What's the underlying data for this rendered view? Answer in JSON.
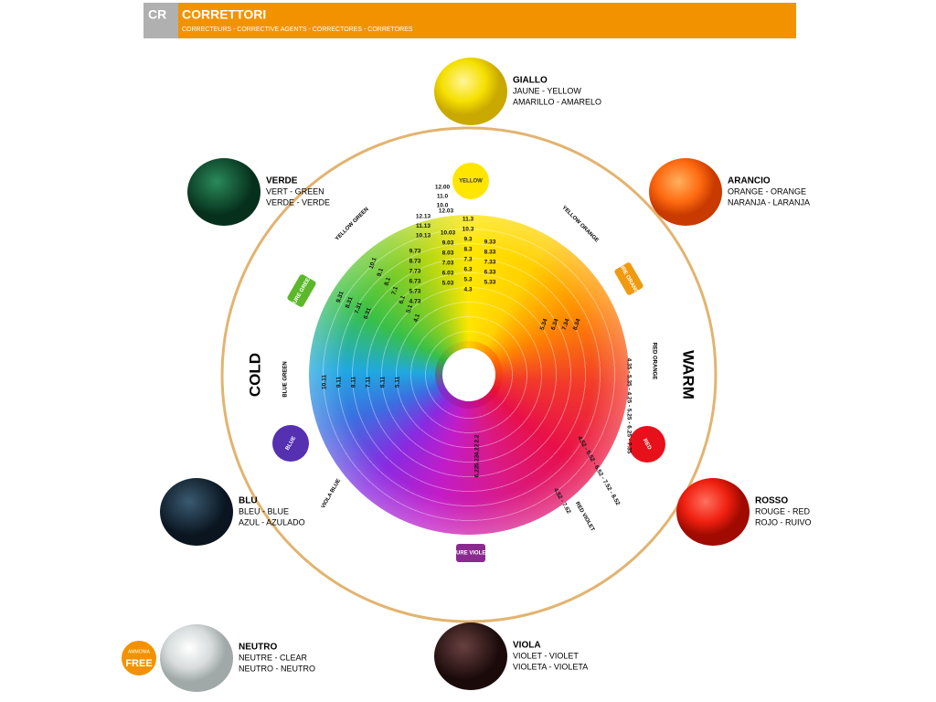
{
  "header": {
    "code": "CR",
    "title": "CORRETTORI",
    "subtitle": "CORRECTEURS - CORRECTIVE AGENTS - CORRECTORES - CORRETORES"
  },
  "swatches": [
    {
      "name": "GIALLO",
      "line1": "JAUNE - YELLOW",
      "line2": "AMARILLO - AMARELO"
    },
    {
      "name": "VERDE",
      "line1": "VERT - GREEN",
      "line2": "VERDE - VERDE"
    },
    {
      "name": "ARANCIO",
      "line1": "ORANGE - ORANGE",
      "line2": "NARANJA - LARANJA"
    },
    {
      "name": "BLU",
      "line1": "BLEU - BLUE",
      "line2": "AZUL - AZULADO"
    },
    {
      "name": "ROSSO",
      "line1": "ROUGE - RED",
      "line2": "ROJO - RUIVO"
    },
    {
      "name": "NEUTRO",
      "line1": "NEUTRE - CLEAR",
      "line2": "NEUTRO - NEUTRO"
    },
    {
      "name": "VIOLA",
      "line1": "VIOLET - VIOLET",
      "line2": "VIOLETA - VIOLETA"
    }
  ],
  "free_badge": {
    "top": "AMMONIA",
    "label": "FREE"
  },
  "wheel": {
    "cold": "COLD",
    "warm": "WARM",
    "badges": [
      "YELLOW",
      "PURE GREEN",
      "PURE ORANGE",
      "BLUE",
      "RED",
      "PURE VIOLET"
    ],
    "sectors": [
      "YELLOW GREEN",
      "YELLOW ORANGE",
      "BLUE GREEN",
      "RED ORANGE",
      "VIOLA BLUE",
      "RED VIOLET"
    ],
    "columns": [
      [
        "12.00",
        "11.0",
        "10.0"
      ],
      [
        "12.03"
      ],
      [
        "12.13",
        "11.13",
        "10.13"
      ],
      [
        "10.03",
        "9.03",
        "8.03",
        "7.03",
        "6.03",
        "5.03"
      ],
      [
        "11.3",
        "10.3",
        "9.3",
        "8.3",
        "7.3",
        "6.3",
        "5.3",
        "4.3"
      ],
      [
        "9.33",
        "8.33",
        "7.33",
        "6.33",
        "5.33"
      ],
      [
        "9.73",
        "8.73",
        "7.73",
        "6.73",
        "5.73",
        "4.73"
      ],
      [
        "10.1",
        "9.1",
        "8.1",
        "7.1",
        "6.1",
        "5.1",
        "4.1"
      ],
      [
        "9.31",
        "8.31",
        "7.31",
        "6.31"
      ],
      [
        "10.11",
        "9.11",
        "8.11",
        "7.11",
        "6.11",
        "5.11"
      ],
      [
        "5.34",
        "6.34",
        "7.34",
        "8.34"
      ],
      [
        "4.35 - 5.35 - 4.25 - 5.25 - 6.25 - 7.35"
      ],
      [
        "4.52 - 5.52 - 6.52 - 7.52 - 8.52"
      ],
      [
        "4.52 - 7.62"
      ],
      [
        "2.2",
        "4.22",
        "5.22",
        "6.22"
      ]
    ]
  }
}
